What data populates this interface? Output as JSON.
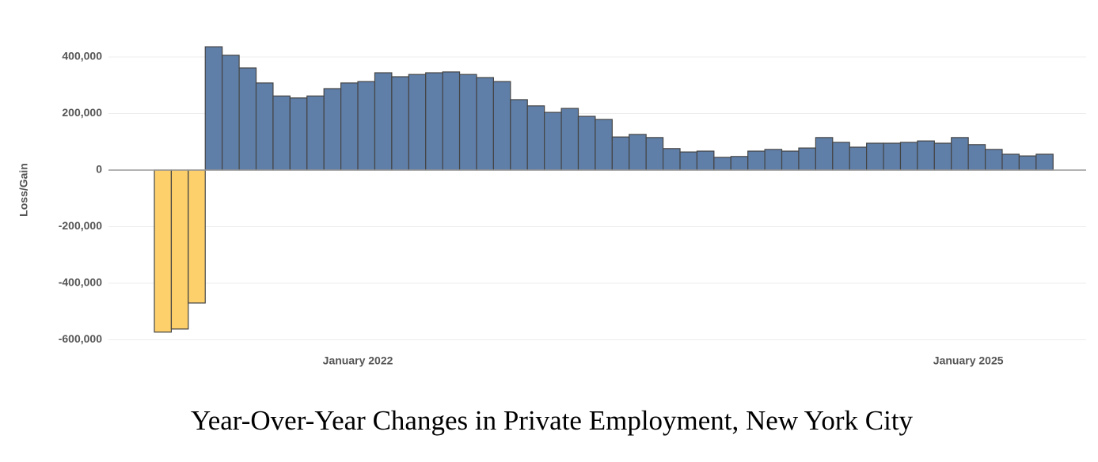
{
  "chart_data": {
    "type": "bar",
    "title": "Year-Over-Year Changes in Private Employment, New York City",
    "y_label": "Loss/Gain",
    "categories": [
      null,
      null,
      null,
      null,
      null,
      null,
      null,
      null,
      null,
      null,
      null,
      null,
      "January 2022",
      null,
      null,
      null,
      null,
      null,
      null,
      null,
      null,
      null,
      null,
      null,
      null,
      null,
      null,
      null,
      null,
      null,
      null,
      null,
      null,
      null,
      null,
      null,
      null,
      null,
      null,
      null,
      null,
      null,
      null,
      null,
      null,
      null,
      null,
      null,
      "January 2025",
      null,
      null,
      null,
      null
    ],
    "values": [
      -573000,
      -562000,
      -470000,
      436000,
      406000,
      361000,
      308000,
      262000,
      255000,
      262000,
      288000,
      308000,
      313000,
      344000,
      330000,
      338000,
      344000,
      347000,
      338000,
      327000,
      313000,
      249000,
      227000,
      204000,
      218000,
      190000,
      179000,
      117000,
      126000,
      115000,
      76000,
      64000,
      67000,
      45000,
      48000,
      67000,
      73000,
      67000,
      78000,
      115000,
      98000,
      81000,
      95000,
      95000,
      98000,
      103000,
      95000,
      115000,
      90000,
      73000,
      56000,
      50000,
      56000
    ],
    "positive_color": "#5f7fa9",
    "negative_color": "#fdd06c",
    "ylim": [
      -630000,
      450000
    ],
    "yticks": [
      {
        "value": -600000,
        "label": "-600,000"
      },
      {
        "value": -400000,
        "label": "-400,000"
      },
      {
        "value": -200000,
        "label": "-200,000"
      },
      0,
      {
        "value": 200000,
        "label": "200,000"
      },
      {
        "value": 400000,
        "label": "400,000"
      }
    ],
    "grid": true
  }
}
